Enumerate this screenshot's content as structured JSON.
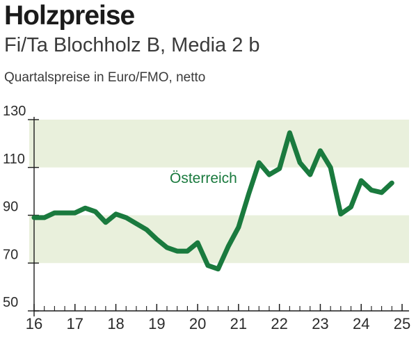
{
  "header": {
    "title": "Holzpreise",
    "subtitle": "Fi/Ta Blochholz B, Media 2 b",
    "unit": "Quartalspreise in Euro/FMO, netto"
  },
  "colors": {
    "line": "#1a7a3e",
    "band": "#e9f0dc",
    "axis": "#1b1b1b",
    "text": "#2b2b2b"
  },
  "chart_data": {
    "type": "line",
    "title": "Holzpreise",
    "subtitle": "Fi/Ta Blochholz B, Media 2 b",
    "ylabel": "Quartalspreise in Euro/FMO, netto",
    "xlabel": "",
    "ylim": [
      50,
      130
    ],
    "y_ticks": [
      50,
      70,
      90,
      110,
      130
    ],
    "x_tick_labels": [
      "16",
      "17",
      "18",
      "19",
      "20",
      "21",
      "22",
      "23",
      "24",
      "25"
    ],
    "x_range": [
      2016,
      2025
    ],
    "bands": [
      [
        70,
        90
      ],
      [
        110,
        130
      ]
    ],
    "grid": false,
    "series": [
      {
        "name": "Österreich",
        "x": [
          2016.0,
          2016.25,
          2016.5,
          2016.75,
          2017.0,
          2017.25,
          2017.5,
          2017.75,
          2018.0,
          2018.25,
          2018.5,
          2018.75,
          2019.0,
          2019.25,
          2019.5,
          2019.75,
          2020.0,
          2020.25,
          2020.5,
          2020.75,
          2021.0,
          2021.25,
          2021.5,
          2021.75,
          2022.0,
          2022.25,
          2022.5,
          2022.75,
          2023.0,
          2023.25,
          2023.5,
          2023.75,
          2024.0,
          2024.25,
          2024.5,
          2024.75
        ],
        "values": [
          89.0,
          89.0,
          91.0,
          91.0,
          91.0,
          93.0,
          91.5,
          87.0,
          90.5,
          89.0,
          86.5,
          84.0,
          80.0,
          76.5,
          75.0,
          75.0,
          78.5,
          69.0,
          67.5,
          77.0,
          85.0,
          99.0,
          112.0,
          107.0,
          109.5,
          124.5,
          112.0,
          107.0,
          117.0,
          110.0,
          90.5,
          93.5,
          104.5,
          100.5,
          99.5,
          103.5
        ]
      }
    ]
  }
}
